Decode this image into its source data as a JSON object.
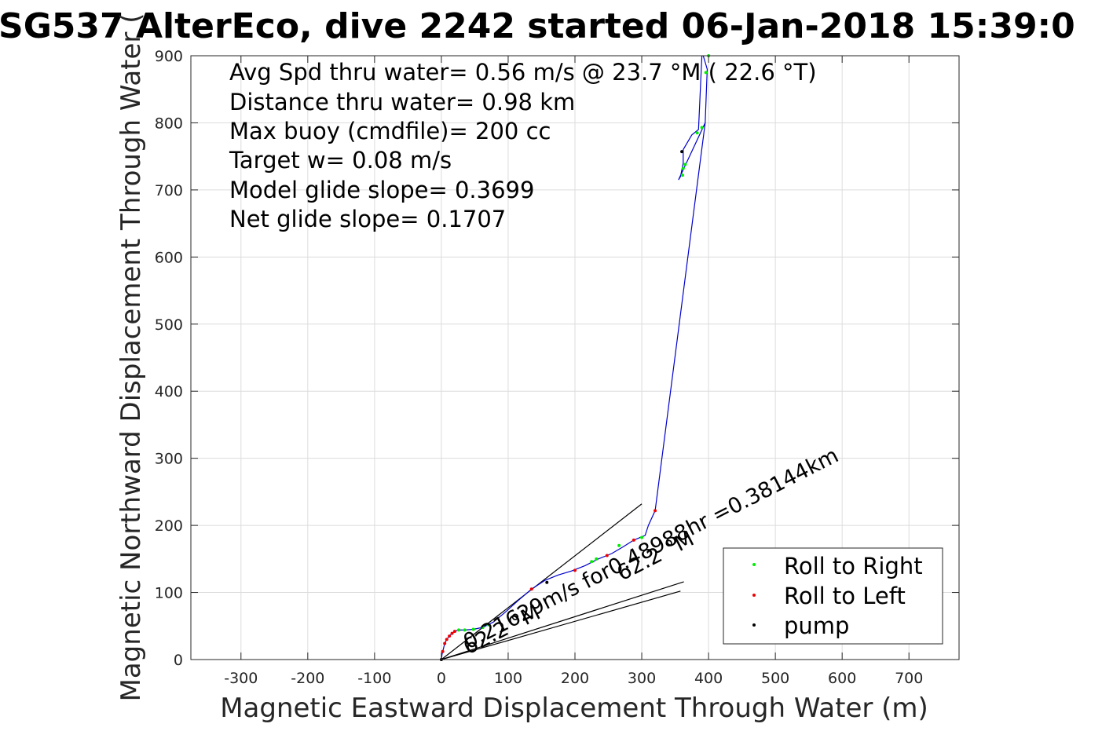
{
  "chart_data": {
    "type": "line",
    "title": "SG537 AlterEco, dive 2242 started 06-Jan-2018 15:39:0",
    "xlabel": "Magnetic Eastward Displacement Through Water (m)",
    "ylabel": "Magnetic Northward Displacement Through Water (",
    "xlim": [
      -375,
      775
    ],
    "ylim": [
      0,
      900
    ],
    "xticks": [
      -300,
      -200,
      -100,
      0,
      100,
      200,
      300,
      400,
      500,
      600,
      700
    ],
    "yticks": [
      0,
      100,
      200,
      300,
      400,
      500,
      600,
      700,
      800,
      900
    ],
    "grid": true,
    "stats": [
      "Avg Spd thru water=  0.56 m/s @  23.7 °M ( 22.6 °T)",
      "Distance thru water=  0.98 km",
      "Max buoy (cmdfile)= 200 cc",
      "Target w= 0.08 m/s",
      "Model glide slope= 0.3699",
      "Net glide slope= 0.1707"
    ],
    "track": {
      "name": "",
      "color": "#0000cc",
      "x": [
        0,
        1,
        3,
        5,
        8,
        12,
        16,
        20,
        26,
        35,
        48,
        62,
        78,
        95,
        115,
        135,
        155,
        175,
        195,
        215,
        235,
        255,
        272,
        288,
        305,
        310,
        320,
        395,
        398,
        392,
        390,
        385,
        375,
        362,
        362,
        358,
        355,
        395
      ],
      "y": [
        0,
        8,
        16,
        24,
        30,
        35,
        39,
        42,
        44,
        44,
        45,
        48,
        56,
        70,
        88,
        105,
        118,
        126,
        132,
        140,
        150,
        158,
        168,
        178,
        185,
        200,
        222,
        800,
        880,
        900,
        900,
        790,
        782,
        760,
        740,
        720,
        715,
        800
      ]
    },
    "track_markers": {
      "roll_right": {
        "label": "Roll to Right",
        "color": "#00ee00",
        "x": [
          26,
          35,
          48,
          62,
          70,
          225,
          232,
          266,
          300,
          361,
          362,
          365,
          383,
          390,
          396,
          400
        ],
        "y": [
          44,
          44,
          45,
          48,
          52,
          146,
          150,
          170,
          182,
          722,
          732,
          738,
          785,
          793,
          875,
          900
        ]
      },
      "roll_left": {
        "label": "Roll to Left",
        "color": "#ee0000",
        "x": [
          2,
          5,
          8,
          12,
          16,
          20,
          135,
          200,
          248,
          288,
          320
        ],
        "y": [
          12,
          24,
          30,
          35,
          39,
          42,
          105,
          133,
          155,
          178,
          222
        ]
      },
      "pump": {
        "label": "pump",
        "color": "#000000",
        "x": [
          0,
          158,
          360
        ],
        "y": [
          0,
          115,
          757
        ]
      }
    },
    "heading_lines": [
      {
        "x": [
          0,
          300
        ],
        "y": [
          0,
          232
        ]
      },
      {
        "x": [
          0,
          363
        ],
        "y": [
          0,
          116
        ]
      },
      {
        "x": [
          0,
          358
        ],
        "y": [
          0,
          102
        ]
      }
    ],
    "annotations": [
      {
        "text": "0.21629m/s for0.48988hr =0.38144km",
        "x": 40,
        "y": 15,
        "angle_deg": 27
      },
      {
        "text": "62.2 °M",
        "x": 40,
        "y": 7,
        "angle_deg": 27
      },
      {
        "text": "62.2 °M",
        "x": 270,
        "y": 117,
        "angle_deg": 27
      }
    ],
    "legend": {
      "placement": "bottom-right",
      "entries": [
        "Roll to Right",
        "Roll to Left",
        "pump"
      ]
    }
  }
}
